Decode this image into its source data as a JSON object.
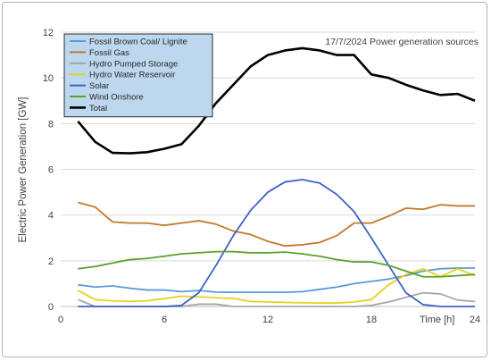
{
  "chart_data": {
    "type": "line",
    "title": "17/7/2024 Power generation sources",
    "xlabel": "Time [h]",
    "ylabel": "Electric Power Generation  [GW]",
    "xlim": [
      0,
      24
    ],
    "ylim": [
      0,
      12
    ],
    "x_ticks": [
      "0",
      "6",
      "12",
      "18",
      "24"
    ],
    "y_ticks": [
      "0",
      "2",
      "4",
      "6",
      "8",
      "10",
      "12"
    ],
    "grid": "horizontal",
    "legend_position": "top-left",
    "x": [
      1,
      2,
      3,
      4,
      5,
      6,
      7,
      8,
      9,
      10,
      11,
      12,
      13,
      14,
      15,
      16,
      17,
      18,
      19,
      20,
      21,
      22,
      23,
      24
    ],
    "series": [
      {
        "name": "Fossil Brown Coal/ Lignite",
        "color": "#5b9bd5",
        "values": [
          0.95,
          0.85,
          0.9,
          0.8,
          0.72,
          0.72,
          0.65,
          0.7,
          0.63,
          0.62,
          0.62,
          0.62,
          0.62,
          0.65,
          0.75,
          0.85,
          1.0,
          1.1,
          1.2,
          1.35,
          1.55,
          1.65,
          1.68,
          1.68
        ]
      },
      {
        "name": "Fossil Gas",
        "color": "#c07a2a",
        "values": [
          4.55,
          4.35,
          3.7,
          3.65,
          3.65,
          3.55,
          3.65,
          3.75,
          3.6,
          3.3,
          3.15,
          2.85,
          2.65,
          2.7,
          2.8,
          3.1,
          3.65,
          3.65,
          3.95,
          4.3,
          4.25,
          4.45,
          4.4,
          4.4
        ]
      },
      {
        "name": "Hydro Pumped Storage",
        "color": "#a6a6a6",
        "values": [
          0.3,
          0.0,
          0.0,
          0.0,
          0.0,
          0.0,
          0.0,
          0.1,
          0.1,
          0.0,
          0.0,
          0.0,
          0.0,
          0.0,
          0.0,
          0.0,
          0.0,
          0.05,
          0.2,
          0.4,
          0.6,
          0.55,
          0.28,
          0.22
        ]
      },
      {
        "name": "Hydro Water Reservoir",
        "color": "#e8d21c",
        "values": [
          0.7,
          0.3,
          0.25,
          0.22,
          0.25,
          0.35,
          0.45,
          0.42,
          0.38,
          0.35,
          0.22,
          0.2,
          0.18,
          0.16,
          0.15,
          0.15,
          0.2,
          0.3,
          0.95,
          1.4,
          1.65,
          1.3,
          1.65,
          1.35
        ]
      },
      {
        "name": "Solar",
        "color": "#3f62c4",
        "values": [
          0.0,
          0.0,
          0.0,
          0.0,
          0.0,
          0.0,
          0.05,
          0.6,
          1.8,
          3.1,
          4.2,
          5.0,
          5.45,
          5.55,
          5.4,
          4.9,
          4.15,
          3.0,
          1.8,
          0.6,
          0.08,
          0.0,
          0.0,
          0.0
        ]
      },
      {
        "name": "Wind Onshore",
        "color": "#5aa02c",
        "values": [
          1.65,
          1.75,
          1.9,
          2.05,
          2.1,
          2.2,
          2.3,
          2.35,
          2.4,
          2.4,
          2.35,
          2.35,
          2.38,
          2.3,
          2.2,
          2.05,
          1.95,
          1.95,
          1.8,
          1.55,
          1.3,
          1.3,
          1.35,
          1.4
        ]
      },
      {
        "name": "Total",
        "color": "#000000",
        "values": [
          8.1,
          7.2,
          6.72,
          6.7,
          6.75,
          6.9,
          7.1,
          7.9,
          8.9,
          9.7,
          10.5,
          11.0,
          11.2,
          11.3,
          11.2,
          11.0,
          11.0,
          10.15,
          10.0,
          9.7,
          9.45,
          9.25,
          9.3,
          9.0
        ]
      }
    ]
  }
}
